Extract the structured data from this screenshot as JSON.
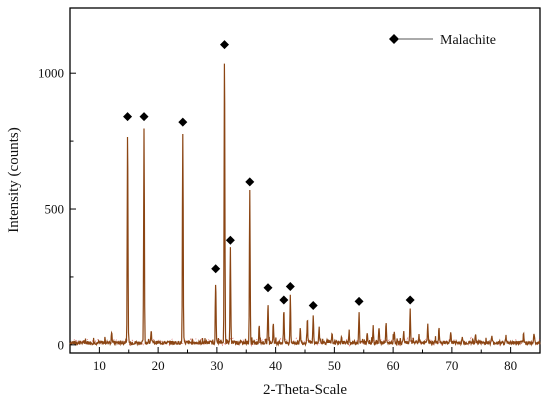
{
  "chart_data": {
    "type": "line",
    "title": "",
    "xlabel": "2-Theta-Scale",
    "ylabel": "Intensity (counts)",
    "xlim": [
      5,
      85
    ],
    "ylim": [
      -30,
      1240
    ],
    "x_ticks": [
      10,
      20,
      30,
      40,
      50,
      60,
      70,
      80
    ],
    "y_ticks": [
      0,
      500,
      1000
    ],
    "grid": false,
    "legend": {
      "position": "top-right",
      "entries": [
        "Malachite"
      ]
    },
    "colors": {
      "pattern": "#8B4513",
      "noise": "#cc3333",
      "marker": "#000000",
      "axis": "#000000"
    },
    "series": [
      {
        "name": "Malachite",
        "baseline": 8,
        "peaks": [
          {
            "x": 12.1,
            "y": 45
          },
          {
            "x": 14.8,
            "y": 790
          },
          {
            "x": 17.6,
            "y": 790
          },
          {
            "x": 18.8,
            "y": 40
          },
          {
            "x": 24.2,
            "y": 765
          },
          {
            "x": 29.8,
            "y": 230
          },
          {
            "x": 31.3,
            "y": 1075
          },
          {
            "x": 32.3,
            "y": 350
          },
          {
            "x": 35.6,
            "y": 560
          },
          {
            "x": 37.2,
            "y": 70
          },
          {
            "x": 38.7,
            "y": 150
          },
          {
            "x": 39.6,
            "y": 70
          },
          {
            "x": 41.4,
            "y": 120
          },
          {
            "x": 42.5,
            "y": 170
          },
          {
            "x": 44.2,
            "y": 50
          },
          {
            "x": 45.4,
            "y": 90
          },
          {
            "x": 46.4,
            "y": 100
          },
          {
            "x": 47.4,
            "y": 55
          },
          {
            "x": 49.6,
            "y": 30
          },
          {
            "x": 51.2,
            "y": 25
          },
          {
            "x": 52.5,
            "y": 35
          },
          {
            "x": 54.2,
            "y": 115
          },
          {
            "x": 55.6,
            "y": 40
          },
          {
            "x": 56.6,
            "y": 60
          },
          {
            "x": 57.6,
            "y": 55
          },
          {
            "x": 58.8,
            "y": 75
          },
          {
            "x": 60.2,
            "y": 40
          },
          {
            "x": 61.8,
            "y": 45
          },
          {
            "x": 62.9,
            "y": 120
          },
          {
            "x": 64.4,
            "y": 30
          },
          {
            "x": 65.9,
            "y": 70
          },
          {
            "x": 67.8,
            "y": 60
          },
          {
            "x": 69.8,
            "y": 45
          },
          {
            "x": 71.8,
            "y": 20
          },
          {
            "x": 74.0,
            "y": 30
          },
          {
            "x": 76.8,
            "y": 25
          },
          {
            "x": 79.2,
            "y": 25
          },
          {
            "x": 82.2,
            "y": 30
          },
          {
            "x": 84.0,
            "y": 35
          }
        ],
        "markers": [
          {
            "x": 14.8,
            "y": 840
          },
          {
            "x": 17.6,
            "y": 840
          },
          {
            "x": 24.2,
            "y": 820
          },
          {
            "x": 29.8,
            "y": 280
          },
          {
            "x": 31.3,
            "y": 1105
          },
          {
            "x": 32.3,
            "y": 385
          },
          {
            "x": 35.6,
            "y": 600
          },
          {
            "x": 38.7,
            "y": 210
          },
          {
            "x": 41.4,
            "y": 165
          },
          {
            "x": 42.5,
            "y": 215
          },
          {
            "x": 46.4,
            "y": 145
          },
          {
            "x": 54.2,
            "y": 160
          },
          {
            "x": 62.9,
            "y": 165
          }
        ]
      }
    ]
  }
}
